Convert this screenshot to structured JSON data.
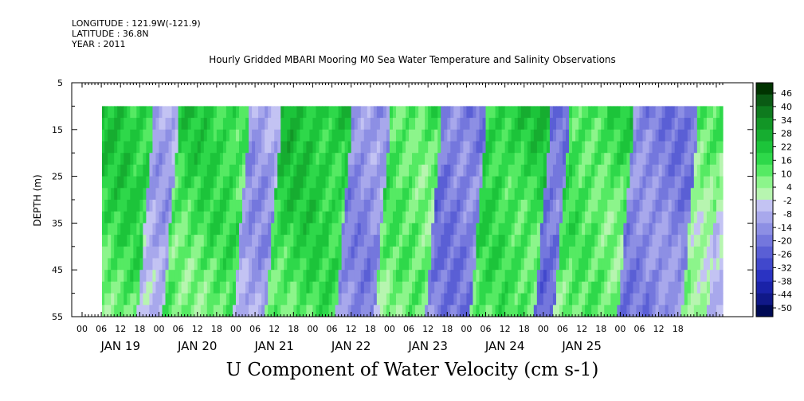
{
  "meta": {
    "longitude": "LONGITUDE : 121.9W(-121.9)",
    "latitude": "LATITUDE : 36.8N",
    "year": "YEAR : 2011"
  },
  "chart_data": {
    "type": "heatmap",
    "title": "Hourly Gridded MBARI Mooring M0 Sea Water Temperature and Salinity Observations",
    "variable_title": "U Component of Water Velocity (cm s-1)",
    "ylabel": "DEPTH (m)",
    "y_ticks": [
      5,
      15,
      25,
      35,
      45,
      55
    ],
    "ylim": [
      5,
      55
    ],
    "y_data_range": [
      10,
      55
    ],
    "hour_ticks": [
      "00",
      "06",
      "12",
      "18",
      "00",
      "06",
      "12",
      "18",
      "00",
      "06",
      "12",
      "18",
      "00",
      "06",
      "12",
      "18",
      "00",
      "06",
      "12",
      "18",
      "00",
      "06",
      "12",
      "18",
      "00",
      "06",
      "12",
      "18",
      "00",
      "06",
      "12",
      "18"
    ],
    "day_labels": [
      "JAN 19",
      "JAN 20",
      "JAN 21",
      "JAN 22",
      "JAN 23",
      "JAN 24",
      "JAN 25"
    ],
    "x_range_hours": [
      0,
      200
    ],
    "data_start_hour": 4,
    "colorbar": {
      "labels": [
        "46",
        "40",
        "34",
        "28",
        "22",
        "16",
        "10",
        "4",
        "-2",
        "-8",
        "-14",
        "-20",
        "-26",
        "-32",
        "-38",
        "-44",
        "-50"
      ],
      "colors": [
        "#003300",
        "#0a5a14",
        "#0e7a1e",
        "#129626",
        "#16ad30",
        "#1cc43a",
        "#2ed84a",
        "#55ea63",
        "#8cf58b",
        "#b7f5b0",
        "#c3c3f3",
        "#a8a8ec",
        "#8d8fe4",
        "#7477dd",
        "#5a5fd5",
        "#4148cc",
        "#2a33c2",
        "#1a22a8",
        "#101888",
        "#000a55"
      ],
      "levels": [
        46,
        40,
        34,
        28,
        22,
        16,
        10,
        4,
        -2,
        -8,
        -14,
        -20,
        -26,
        -32,
        -38,
        -44,
        -50
      ]
    },
    "description_bands": [
      {
        "start_hour": 4,
        "end_hour": 22,
        "value": 18
      },
      {
        "start_hour": 22,
        "end_hour": 30,
        "value": -8
      },
      {
        "start_hour": 30,
        "end_hour": 52,
        "value": 16
      },
      {
        "start_hour": 52,
        "end_hour": 62,
        "value": -10
      },
      {
        "start_hour": 62,
        "end_hour": 84,
        "value": 20
      },
      {
        "start_hour": 84,
        "end_hour": 96,
        "value": -14
      },
      {
        "start_hour": 96,
        "end_hour": 112,
        "value": 12
      },
      {
        "start_hour": 112,
        "end_hour": 126,
        "value": -18
      },
      {
        "start_hour": 126,
        "end_hour": 146,
        "value": 18
      },
      {
        "start_hour": 146,
        "end_hour": 152,
        "value": -20
      },
      {
        "start_hour": 152,
        "end_hour": 172,
        "value": 14
      },
      {
        "start_hour": 172,
        "end_hour": 192,
        "value": -16
      },
      {
        "start_hour": 192,
        "end_hour": 200,
        "value": 8
      }
    ]
  }
}
